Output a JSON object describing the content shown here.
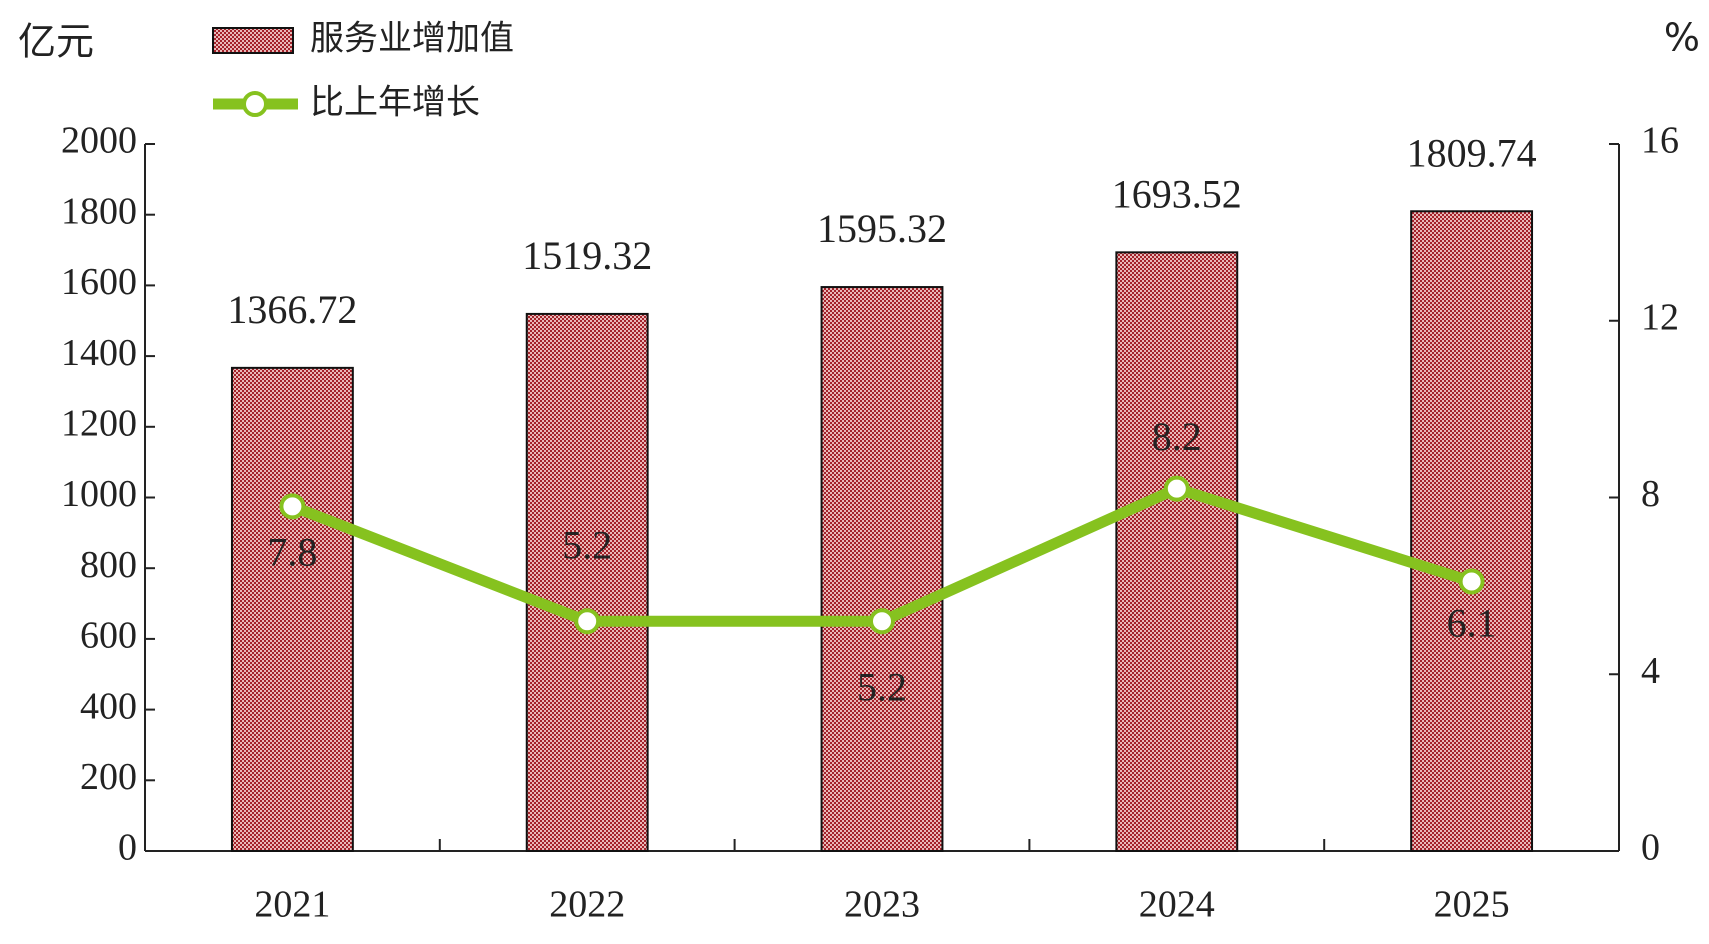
{
  "chart_data": {
    "type": "bar",
    "y_label": "亿元",
    "y2_label": "%",
    "categories": [
      "2021",
      "2022",
      "2023",
      "2024",
      "2025"
    ],
    "series": [
      {
        "name": "服务业增加值",
        "color": "#a3222a",
        "values": [
          1366.72,
          1519.32,
          1595.32,
          1693.52,
          1809.74
        ]
      },
      {
        "name": "比上年增长",
        "color": "#86c21f",
        "type": "line",
        "axis": "y2",
        "values": [
          7.8,
          5.2,
          5.2,
          8.2,
          6.1
        ]
      }
    ],
    "ylim": [
      0,
      2000
    ],
    "yticks": [
      0,
      200,
      400,
      600,
      800,
      1000,
      1200,
      1400,
      1600,
      1800,
      2000
    ],
    "y2lim": [
      0,
      16
    ],
    "y2ticks": [
      0,
      4,
      8,
      12,
      16
    ]
  }
}
